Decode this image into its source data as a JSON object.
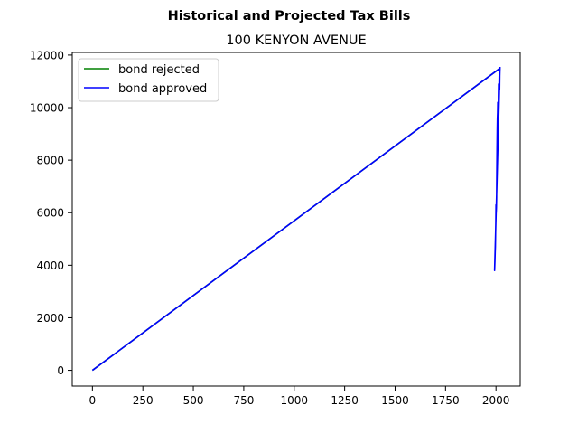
{
  "chart_data": {
    "type": "line",
    "suptitle": "Historical and Projected Tax Bills",
    "title": "100 KENYON AVENUE",
    "xlabel": "",
    "ylabel": "",
    "xlim": [
      -100,
      2120
    ],
    "ylim": [
      -600,
      12100
    ],
    "xticks": [
      0,
      250,
      500,
      750,
      1000,
      1250,
      1500,
      1750,
      2000
    ],
    "yticks": [
      0,
      2000,
      4000,
      6000,
      8000,
      10000,
      12000
    ],
    "grid": false,
    "legend_position": "upper left",
    "series": [
      {
        "name": "bond rejected",
        "color": "#008000",
        "x": [
          0,
          2020,
          2020
        ],
        "y": [
          0,
          11500,
          11500
        ]
      },
      {
        "name": "bond approved",
        "color": "#0000ff",
        "x": [
          0,
          2020,
          2019,
          2018,
          2016,
          2015,
          2013,
          2012,
          2011,
          2009,
          2008,
          2007,
          2006,
          2005,
          2004,
          2003,
          2002,
          2001,
          2000,
          1999,
          1998,
          1997,
          1996,
          1995,
          1993,
          2020
        ],
        "y": [
          0,
          11500,
          11300,
          10700,
          11200,
          10800,
          10900,
          10400,
          9000,
          10200,
          9800,
          9600,
          9100,
          8400,
          7500,
          6600,
          6200,
          6000,
          6300,
          5600,
          5200,
          4700,
          4500,
          4200,
          3800,
          11550
        ]
      }
    ]
  }
}
